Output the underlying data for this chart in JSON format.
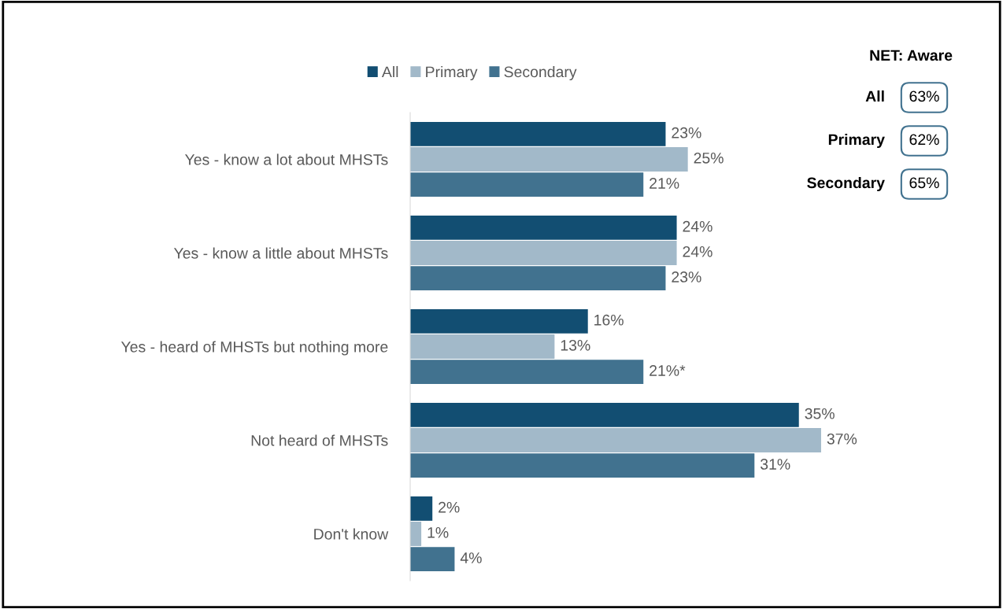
{
  "chart_data": {
    "type": "bar",
    "orientation": "horizontal",
    "categories": [
      "Yes - know a lot about MHSTs",
      "Yes - know a little about MHSTs",
      "Yes - heard of MHSTs but nothing more",
      "Not heard of MHSTs",
      "Don't know"
    ],
    "series": [
      {
        "name": "All",
        "color": "#124e72",
        "values": [
          23,
          24,
          16,
          35,
          2
        ],
        "value_labels": [
          "23%",
          "24%",
          "16%",
          "35%",
          "2%"
        ]
      },
      {
        "name": "Primary",
        "color": "#a2b9c9",
        "values": [
          25,
          24,
          13,
          37,
          1
        ],
        "value_labels": [
          "25%",
          "24%",
          "13%",
          "37%",
          "1%"
        ]
      },
      {
        "name": "Secondary",
        "color": "#41728f",
        "values": [
          21,
          23,
          21,
          31,
          4
        ],
        "value_labels": [
          "21%",
          "23%",
          "21%*",
          "31%",
          "4%"
        ]
      }
    ],
    "legend": "top",
    "annotations": [
      "NET: Aware",
      "All",
      "63%",
      "Primary",
      "62%",
      "Secondary",
      "65%"
    ]
  }
}
